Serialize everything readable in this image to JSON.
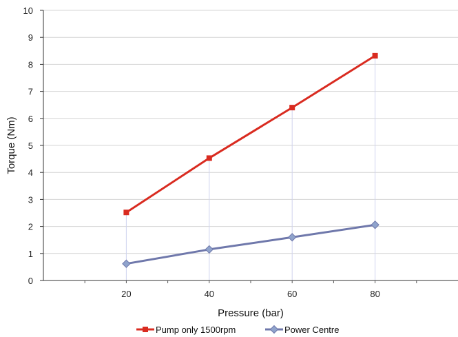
{
  "chart_data": {
    "type": "line",
    "title": "",
    "xlabel": "Pressure (bar)",
    "ylabel": "Torque (Nm)",
    "x": [
      20,
      40,
      60,
      80
    ],
    "x_ticks": [
      "20",
      "40",
      "60",
      "80"
    ],
    "xlim": [
      0,
      100
    ],
    "ylim": [
      0,
      10
    ],
    "y_ticks": [
      "0",
      "1",
      "2",
      "3",
      "4",
      "5",
      "6",
      "7",
      "8",
      "9",
      "10"
    ],
    "grid": "horizontal",
    "legend_position": "bottom",
    "series": [
      {
        "name": "Pump only 1500rpm",
        "values": [
          2.52,
          4.53,
          6.4,
          8.32
        ],
        "color": "#d92b20",
        "marker": "square"
      },
      {
        "name": "Power Centre",
        "values": [
          0.62,
          1.15,
          1.6,
          2.06
        ],
        "color": "#6f78ab",
        "marker": "diamond",
        "marker_fill": "#8fa3cc"
      }
    ]
  }
}
